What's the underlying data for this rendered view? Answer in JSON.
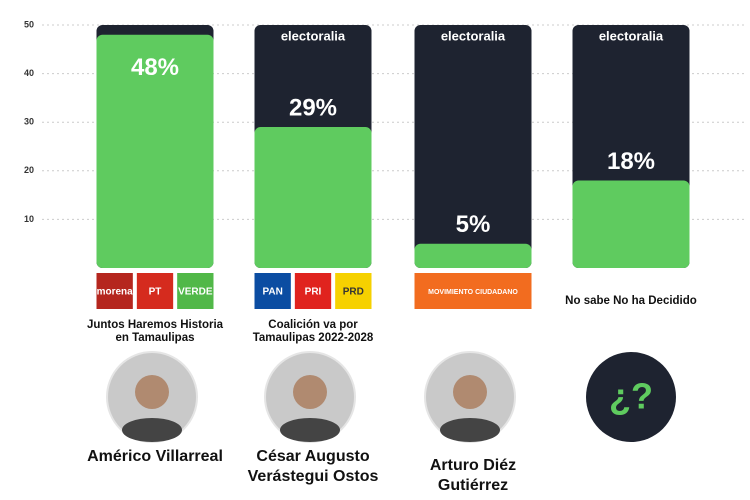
{
  "chart_data": {
    "type": "bar",
    "watermark": "electoralia",
    "categories": [
      "Juntos Haremos Historia en Tamaulipas",
      "Coalición va por Tamaulipas 2022-2028",
      null,
      "No sabe No ha Decidido"
    ],
    "values": [
      48,
      29,
      5,
      18
    ],
    "value_labels": [
      "48%",
      "29%",
      "5%",
      "18%"
    ],
    "parties": [
      [
        "morena",
        "PT",
        "VERDE"
      ],
      [
        "PAN",
        "PRI",
        "PRD"
      ],
      [
        "MOVIMIENTO CIUDADANO"
      ],
      null
    ],
    "candidates": [
      "Américo Villarreal",
      "César Augusto Verástegui Ostos",
      "Arturo Diéz Gutiérrez",
      null
    ],
    "unknown_icon": "¿?",
    "color": "#5fcb5f",
    "track_color": "#1e2330",
    "ylim": [
      0,
      50
    ],
    "yticks": [
      10,
      20,
      30,
      40,
      50
    ],
    "grid": true
  }
}
